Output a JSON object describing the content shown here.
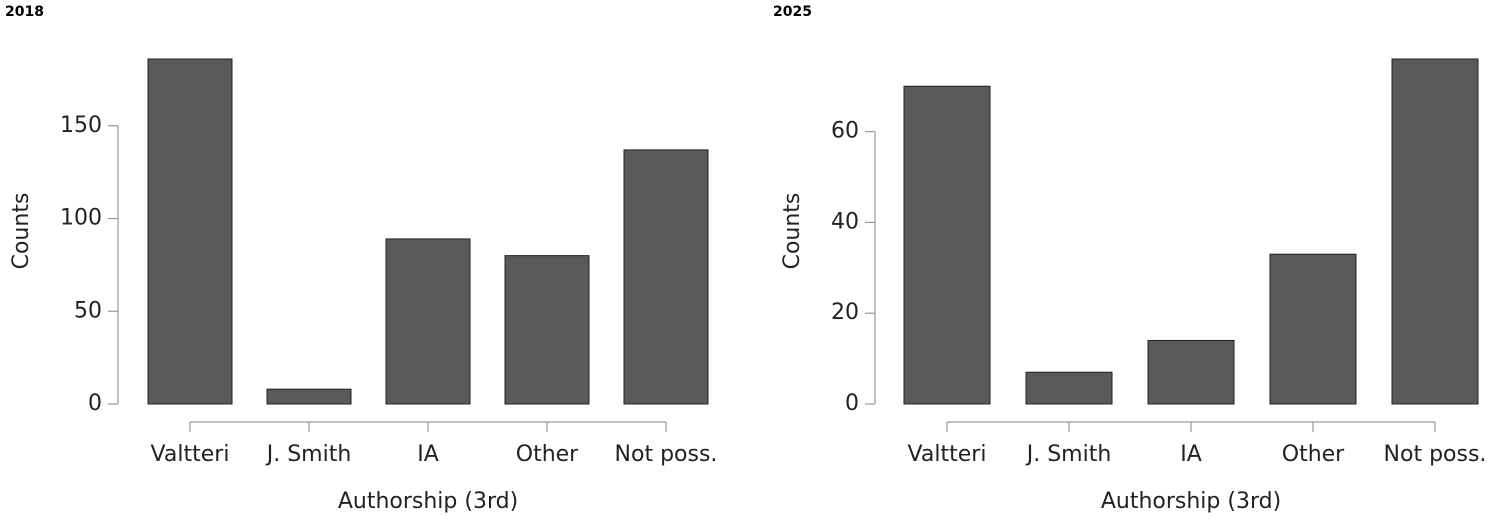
{
  "chart_data": [
    {
      "type": "bar",
      "title": "2018",
      "xlabel": "Authorship (3rd)",
      "ylabel": "Counts",
      "categories": [
        "Valtteri",
        "J. Smith",
        "IA",
        "Other",
        "Not poss."
      ],
      "values": [
        186,
        8,
        89,
        80,
        137
      ],
      "color": "#595959",
      "ylim": [
        0,
        186
      ],
      "yticks": [
        0,
        50,
        100,
        150
      ]
    },
    {
      "type": "bar",
      "title": "2025",
      "xlabel": "Authorship (3rd)",
      "ylabel": "Counts",
      "categories": [
        "Valtteri",
        "J. Smith",
        "IA",
        "Other",
        "Not poss."
      ],
      "values": [
        70,
        7,
        14,
        33,
        76
      ],
      "color": "#595959",
      "ylim": [
        0,
        76
      ],
      "yticks": [
        0,
        20,
        40,
        60
      ]
    }
  ]
}
